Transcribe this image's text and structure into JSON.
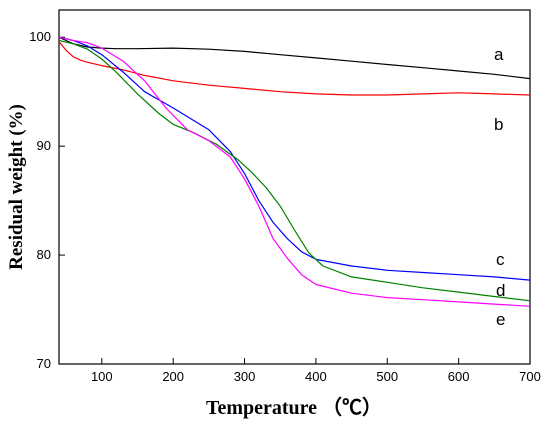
{
  "chart_data": {
    "type": "line",
    "title": "",
    "xlabel": "Temperature （℃）",
    "ylabel": "Residual weight (%)",
    "xlim": [
      40,
      700
    ],
    "ylim": [
      70,
      102.5
    ],
    "x_ticks": [
      "100",
      "200",
      "300",
      "400",
      "500",
      "600",
      "700"
    ],
    "y_ticks": [
      "70",
      "80",
      "90",
      "100"
    ],
    "grid": false,
    "legend": "inline labels at right end of curves",
    "series": [
      {
        "name": "a",
        "color": "#000000",
        "x": [
          40,
          50,
          60,
          80,
          100,
          120,
          150,
          200,
          250,
          300,
          350,
          400,
          450,
          500,
          550,
          600,
          650,
          700
        ],
        "y": [
          100.0,
          99.7,
          99.4,
          99.1,
          99.0,
          98.95,
          98.95,
          99.0,
          98.9,
          98.7,
          98.4,
          98.1,
          97.8,
          97.5,
          97.2,
          96.9,
          96.6,
          96.2
        ]
      },
      {
        "name": "b",
        "color": "#ff0000",
        "x": [
          40,
          50,
          60,
          70,
          80,
          100,
          130,
          160,
          200,
          250,
          300,
          350,
          400,
          450,
          500,
          550,
          600,
          650,
          700
        ],
        "y": [
          99.6,
          98.8,
          98.2,
          97.9,
          97.7,
          97.4,
          97.0,
          96.5,
          96.0,
          95.6,
          95.3,
          95.0,
          94.8,
          94.7,
          94.7,
          94.8,
          94.9,
          94.8,
          94.7
        ]
      },
      {
        "name": "c",
        "color": "#0000ff",
        "x": [
          40,
          60,
          80,
          100,
          130,
          160,
          200,
          250,
          280,
          300,
          320,
          340,
          360,
          380,
          400,
          450,
          500,
          550,
          600,
          650,
          700
        ],
        "y": [
          100.0,
          99.7,
          99.2,
          98.4,
          96.8,
          95.0,
          93.5,
          91.5,
          89.5,
          87.5,
          85.0,
          83.0,
          81.5,
          80.3,
          79.6,
          79.0,
          78.6,
          78.4,
          78.2,
          78.0,
          77.7
        ]
      },
      {
        "name": "d",
        "color": "#008000",
        "x": [
          40,
          60,
          80,
          100,
          120,
          150,
          180,
          200,
          230,
          260,
          290,
          310,
          330,
          350,
          370,
          390,
          410,
          450,
          500,
          550,
          600,
          650,
          700
        ],
        "y": [
          99.7,
          99.4,
          98.9,
          98.0,
          96.8,
          94.8,
          93.0,
          92.0,
          91.2,
          90.2,
          88.8,
          87.6,
          86.2,
          84.5,
          82.3,
          80.2,
          79.0,
          78.0,
          77.5,
          77.0,
          76.6,
          76.2,
          75.8
        ]
      },
      {
        "name": "e",
        "color": "#ff00ff",
        "x": [
          40,
          60,
          80,
          100,
          130,
          160,
          190,
          220,
          250,
          280,
          300,
          320,
          330,
          340,
          360,
          380,
          400,
          450,
          500,
          550,
          600,
          650,
          700
        ],
        "y": [
          100.0,
          99.7,
          99.5,
          99.0,
          97.8,
          96.0,
          93.5,
          91.5,
          90.5,
          89.0,
          87.0,
          84.5,
          83.0,
          81.5,
          79.7,
          78.2,
          77.3,
          76.5,
          76.1,
          75.9,
          75.7,
          75.5,
          75.3
        ]
      }
    ]
  }
}
